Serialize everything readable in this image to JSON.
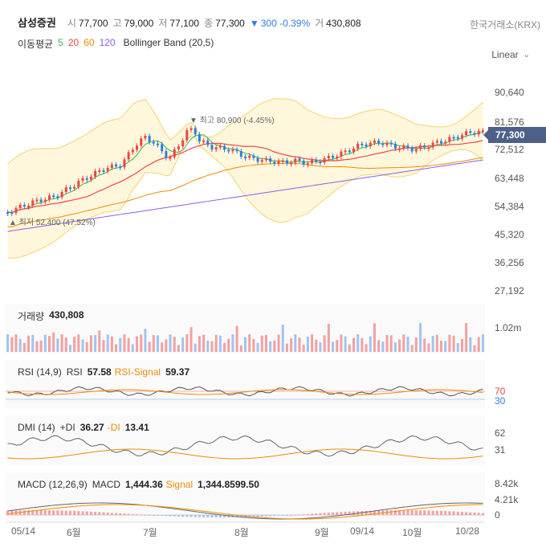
{
  "header": {
    "stock_name": "삼성증권",
    "open_label": "시",
    "open_value": "77,700",
    "high_label": "고",
    "high_value": "79,000",
    "low_label": "저",
    "low_value": "77,100",
    "close_label": "종",
    "close_value": "77,300",
    "change_arrow": "▼",
    "change_value": "300 -0.39%",
    "volume_label": "거",
    "volume_value": "430,808",
    "exchange": "한국거래소(KRX)"
  },
  "indicators": {
    "ma_label": "이동평균",
    "ma_periods": [
      {
        "text": "5",
        "color": "#3bb54a"
      },
      {
        "text": "20",
        "color": "#ef4444"
      },
      {
        "text": "60",
        "color": "#f08c00"
      },
      {
        "text": "120",
        "color": "#8f5ce6"
      }
    ],
    "bollinger": "Bollinger Band (20,5)"
  },
  "scale_mode": "Linear",
  "price_axis": [
    "90,640",
    "81,576",
    "72,512",
    "63,448",
    "54,384",
    "45,320",
    "36,256",
    "27,192"
  ],
  "current_price": "77,300",
  "annotations": {
    "high": "▼ 최고 80,900 (-4.45%)",
    "low": "▲ 최저 52,400 (47.52%)"
  },
  "volume_panel": {
    "label": "거래량",
    "value": "430,808",
    "axis": "1.02m"
  },
  "rsi_panel": {
    "name": "RSI (14,9)",
    "k1": "RSI",
    "v1": "57.58",
    "k2": "RSI-Signal",
    "v2": "59.37",
    "axis_high": "70",
    "axis_low": "30"
  },
  "dmi_panel": {
    "name": "DMI (14)",
    "k1": "+DI",
    "v1": "36.27",
    "k2": "-DI",
    "v2": "13.41",
    "axis_high": "62",
    "axis_low": "31"
  },
  "macd_panel": {
    "name": "MACD (12,26,9)",
    "k1": "MACD",
    "v1": "1,444.36",
    "k2": "Signal",
    "v2": "1,344.8599.50",
    "axis": [
      "8.42k",
      "4.21k",
      "0"
    ]
  },
  "x_axis": [
    "05/14",
    "6월",
    "7월",
    "8월",
    "9월",
    "09/14",
    "10월",
    "10/28"
  ],
  "colors": {
    "up": "#ef4444",
    "down": "#2f7de1",
    "band_fill": "#fff7dc",
    "band_line": "#f5d36b",
    "ma5": "#3bb54a",
    "ma20": "#ef4444",
    "ma60": "#f08c00",
    "ma120": "#8f5ce6",
    "current_tag": "#4e5f8a"
  }
}
